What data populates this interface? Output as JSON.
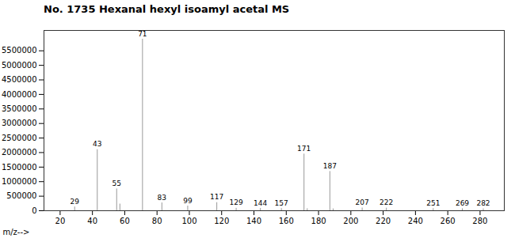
{
  "chart_data": {
    "type": "stem",
    "title": "No. 1735 Hexanal hexyl isoamyl acetal MS",
    "xlabel": "m/z-->",
    "x": [
      29,
      43,
      55,
      57,
      71,
      83,
      99,
      117,
      129,
      144,
      157,
      171,
      173,
      187,
      189,
      207,
      222,
      251,
      269,
      282
    ],
    "values": [
      130000,
      2100000,
      750000,
      230000,
      5900000,
      270000,
      160000,
      280000,
      85000,
      80000,
      75000,
      1950000,
      70000,
      1350000,
      65000,
      95000,
      90000,
      75000,
      70000,
      65000
    ],
    "peak_labels": [
      "29",
      "43",
      "55",
      null,
      "71",
      "83",
      "99",
      "117",
      "129",
      "144",
      "157",
      "171",
      null,
      "187",
      null,
      "207",
      "222",
      "251",
      "269",
      "282"
    ],
    "color": "#999999",
    "xlim": [
      10,
      295
    ],
    "ylim": [
      0,
      6200000
    ],
    "xticks": [
      20,
      40,
      60,
      80,
      100,
      120,
      140,
      160,
      180,
      200,
      220,
      240,
      260,
      280
    ],
    "yticks": [
      0,
      500000,
      1000000,
      1500000,
      2000000,
      2500000,
      3000000,
      3500000,
      4000000,
      4500000,
      5000000,
      5500000
    ],
    "grid": false
  }
}
